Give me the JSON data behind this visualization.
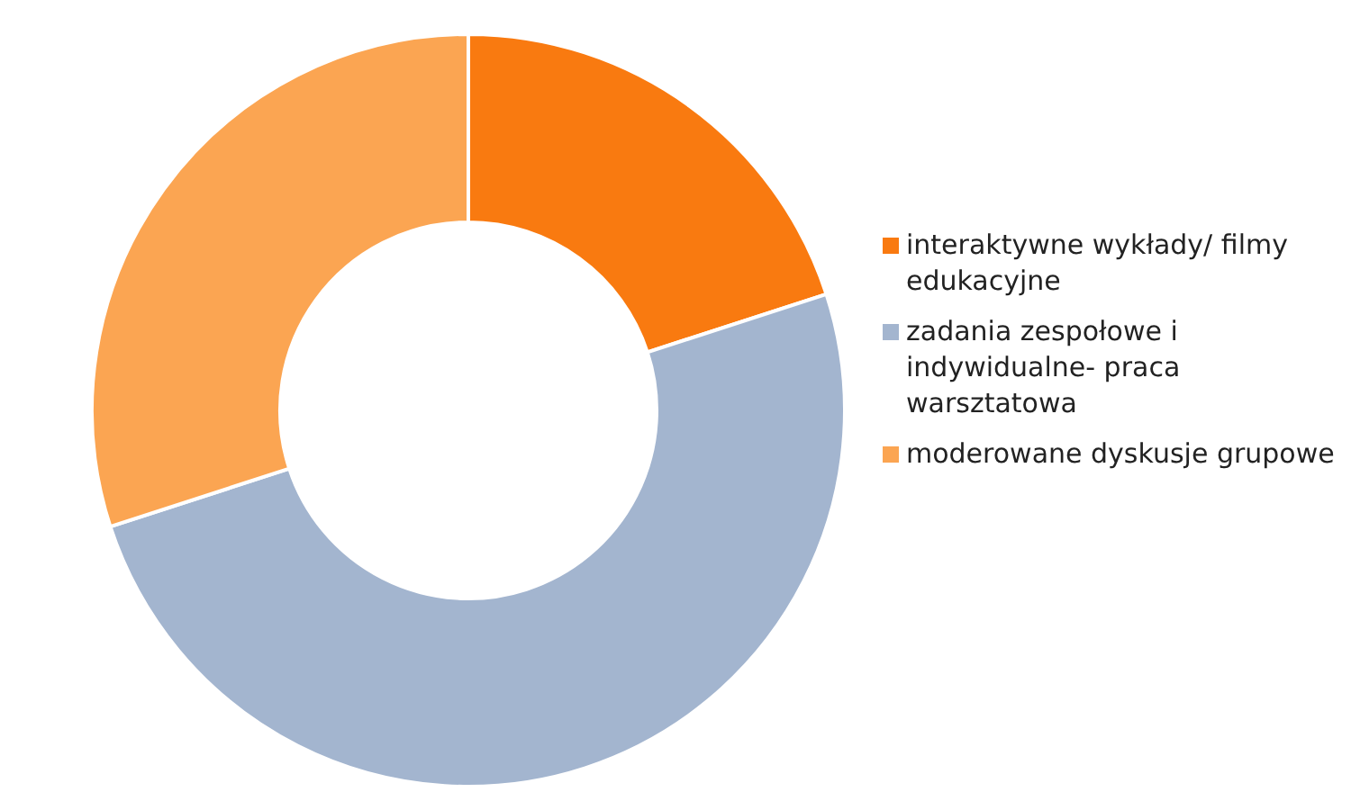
{
  "chart_data": {
    "type": "donut",
    "categories": [
      "interaktywne wykłady/ filmy edukacyjne",
      "zadania zespołowe i indywidualne- praca warsztatowa",
      "moderowane dyskusje grupowe"
    ],
    "values": [
      20,
      50,
      30
    ],
    "colors": [
      "#f97a10",
      "#a3b5cf",
      "#fba552"
    ],
    "legend": "right"
  }
}
